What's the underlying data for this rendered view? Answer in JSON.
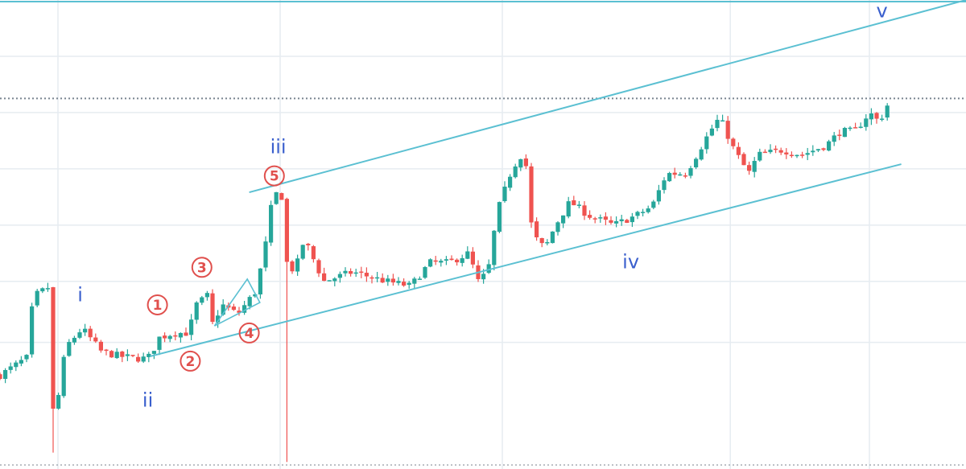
{
  "chart_data": {
    "type": "candlestick",
    "colors": {
      "up": "#26a69a",
      "down": "#ef5350",
      "channel": "#5bc0d2",
      "grid": "#e6ecf1",
      "wave_label": "#3a5fcd",
      "sub_wave_label": "#e0504d"
    },
    "y_scale": [
      0,
      100
    ],
    "horizontal_grid": [
      27,
      40,
      52,
      64,
      76,
      88
    ],
    "vertical_grid": [
      6,
      29,
      52,
      75.6,
      90
    ],
    "price_line": 79,
    "channel_upper": [
      [
        25.8,
        59
      ],
      [
        100,
        100
      ]
    ],
    "channel_lower": [
      [
        15.5,
        24
      ],
      [
        93.3,
        65
      ]
    ],
    "triangle": [
      [
        22.2,
        30.5
      ],
      [
        25.6,
        40.5
      ],
      [
        26.9,
        35.5
      ]
    ],
    "waves": [
      {
        "label": "i",
        "x": 8.3,
        "y": 37
      },
      {
        "label": "ii",
        "x": 15.3,
        "y": 14.5
      },
      {
        "label": "iii",
        "x": 28.8,
        "y": 68.5
      },
      {
        "label": "iv",
        "x": 65.3,
        "y": 44
      },
      {
        "label": "v",
        "x": 91.3,
        "y": 97.5
      }
    ],
    "sub_waves": [
      {
        "label": "1",
        "x": 16.3,
        "y": 35
      },
      {
        "label": "2",
        "x": 19.7,
        "y": 23
      },
      {
        "label": "3",
        "x": 20.9,
        "y": 43
      },
      {
        "label": "4",
        "x": 25.8,
        "y": 29
      },
      {
        "label": "5",
        "x": 28.4,
        "y": 62.5
      }
    ],
    "price_path": [
      [
        0,
        20,
        0
      ],
      [
        3,
        24,
        0
      ],
      [
        3.3,
        34,
        0
      ],
      [
        3.6,
        37,
        0
      ],
      [
        5.2,
        39,
        0
      ],
      [
        5.4,
        12,
        3.5
      ],
      [
        6,
        15,
        0
      ],
      [
        6.8,
        26,
        0
      ],
      [
        8.5,
        30,
        0
      ],
      [
        10.5,
        25,
        0
      ],
      [
        12.5,
        24,
        0
      ],
      [
        14.7,
        23.5,
        0
      ],
      [
        15.5,
        24,
        0
      ],
      [
        16.5,
        28,
        0
      ],
      [
        18,
        29,
        0
      ],
      [
        19.5,
        29,
        0
      ],
      [
        20.3,
        35,
        0
      ],
      [
        21.5,
        37,
        0
      ],
      [
        22,
        31,
        0
      ],
      [
        23,
        35,
        0
      ],
      [
        24.6,
        33,
        0
      ],
      [
        26.5,
        38,
        0
      ],
      [
        27.5,
        48,
        0
      ],
      [
        28.3,
        59,
        0
      ],
      [
        29.2,
        58,
        0
      ],
      [
        29.7,
        44,
        1.5
      ],
      [
        30.5,
        42,
        0
      ],
      [
        31.5,
        49,
        0
      ],
      [
        33.5,
        40,
        0
      ],
      [
        36.5,
        42,
        0
      ],
      [
        40,
        40,
        0
      ],
      [
        42.5,
        39,
        0
      ],
      [
        44.5,
        44,
        0
      ],
      [
        46.5,
        44,
        0
      ],
      [
        48.5,
        46,
        0
      ],
      [
        49.5,
        40,
        0
      ],
      [
        50.5,
        42,
        0
      ],
      [
        51.5,
        55,
        0
      ],
      [
        53,
        64,
        0
      ],
      [
        54.3,
        68,
        0
      ],
      [
        55.1,
        50,
        0
      ],
      [
        56.4,
        47,
        0
      ],
      [
        57.5,
        52,
        0
      ],
      [
        59,
        57,
        0
      ],
      [
        61,
        54,
        0
      ],
      [
        63.5,
        52,
        0
      ],
      [
        65.8,
        54,
        0
      ],
      [
        67.5,
        56,
        0
      ],
      [
        69,
        63,
        0
      ],
      [
        71,
        63,
        0
      ],
      [
        73.5,
        72,
        0
      ],
      [
        74.5,
        75,
        0
      ],
      [
        76,
        68,
        0
      ],
      [
        77.5,
        63,
        0
      ],
      [
        78.5,
        67,
        0
      ],
      [
        81,
        68,
        0
      ],
      [
        83,
        67,
        0
      ],
      [
        85.5,
        69,
        0
      ],
      [
        87,
        72,
        0
      ],
      [
        88.5,
        72,
        0
      ],
      [
        90,
        76,
        0
      ],
      [
        91,
        74,
        0
      ],
      [
        92.2,
        79,
        0
      ]
    ]
  }
}
